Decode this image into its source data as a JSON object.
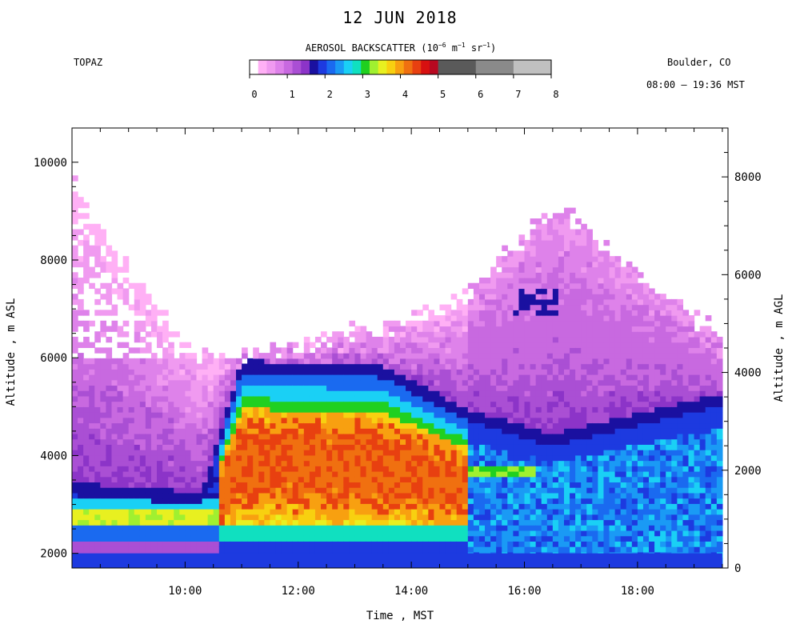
{
  "chart_data": {
    "type": "heatmap",
    "title": "12 JUN 2018",
    "site": "TOPAZ",
    "location": "Boulder, CO",
    "time_range": "08:00 – 19:36 MST",
    "xlabel": "Time , MST",
    "ylabel_left": "Altitude , m ASL",
    "ylabel_right": "Altitude , m AGL",
    "x_ticks": [
      "10:00",
      "12:00",
      "14:00",
      "16:00",
      "18:00"
    ],
    "x_range_hours": [
      8.0,
      19.6
    ],
    "y_left_ticks": [
      2000,
      4000,
      6000,
      8000,
      10000
    ],
    "y_left_range": [
      1700,
      10700
    ],
    "y_right_ticks": [
      0,
      2000,
      4000,
      6000,
      8000
    ],
    "surface_offset_m": 1700,
    "colorbar": {
      "label_main": "AEROSOL BACKSCATTER (10",
      "label_exp1": "−6",
      "label_mid1": " m",
      "label_exp2": "−1",
      "label_mid2": " sr",
      "label_exp3": "−1",
      "label_end": ")",
      "ticks": [
        "0",
        "1",
        "2",
        "3",
        "4",
        "5",
        "6",
        "7",
        "8"
      ],
      "colors_fine": [
        "#ffffff",
        "#ffb0f5",
        "#f09af0",
        "#de82ea",
        "#c869e0",
        "#aa4fd4",
        "#8c34c8",
        "#1a10a0",
        "#1d3ae0",
        "#1a6af0",
        "#1a9af5",
        "#1ad0f5",
        "#10e0c0",
        "#20d020",
        "#a0f030",
        "#e8f020",
        "#f8d010",
        "#f8a010",
        "#f07010",
        "#e84010",
        "#d81010",
        "#b80820"
      ],
      "colors_coarse": [
        "#5a5a5a",
        "#8a8a8a",
        "#c0c0c0"
      ]
    },
    "series_description_values": [
      {
        "time": 8.0,
        "aerosol_top_m": 9600,
        "ml_top_m": 3200
      },
      {
        "time": 10.3,
        "aerosol_top_m": 6000,
        "ml_top_m": 3000
      },
      {
        "time": 11.0,
        "aerosol_top_m": 6100,
        "ml_top_m": 5700
      },
      {
        "time": 13.5,
        "aerosol_top_m": 6600,
        "ml_top_m": 5600
      },
      {
        "time": 15.0,
        "aerosol_top_m": 7300,
        "ml_top_m": 4700
      },
      {
        "time": 16.5,
        "aerosol_top_m": 9100,
        "ml_top_m": 4200
      },
      {
        "time": 19.4,
        "aerosol_top_m": 6500,
        "ml_top_m": 5000
      }
    ]
  }
}
